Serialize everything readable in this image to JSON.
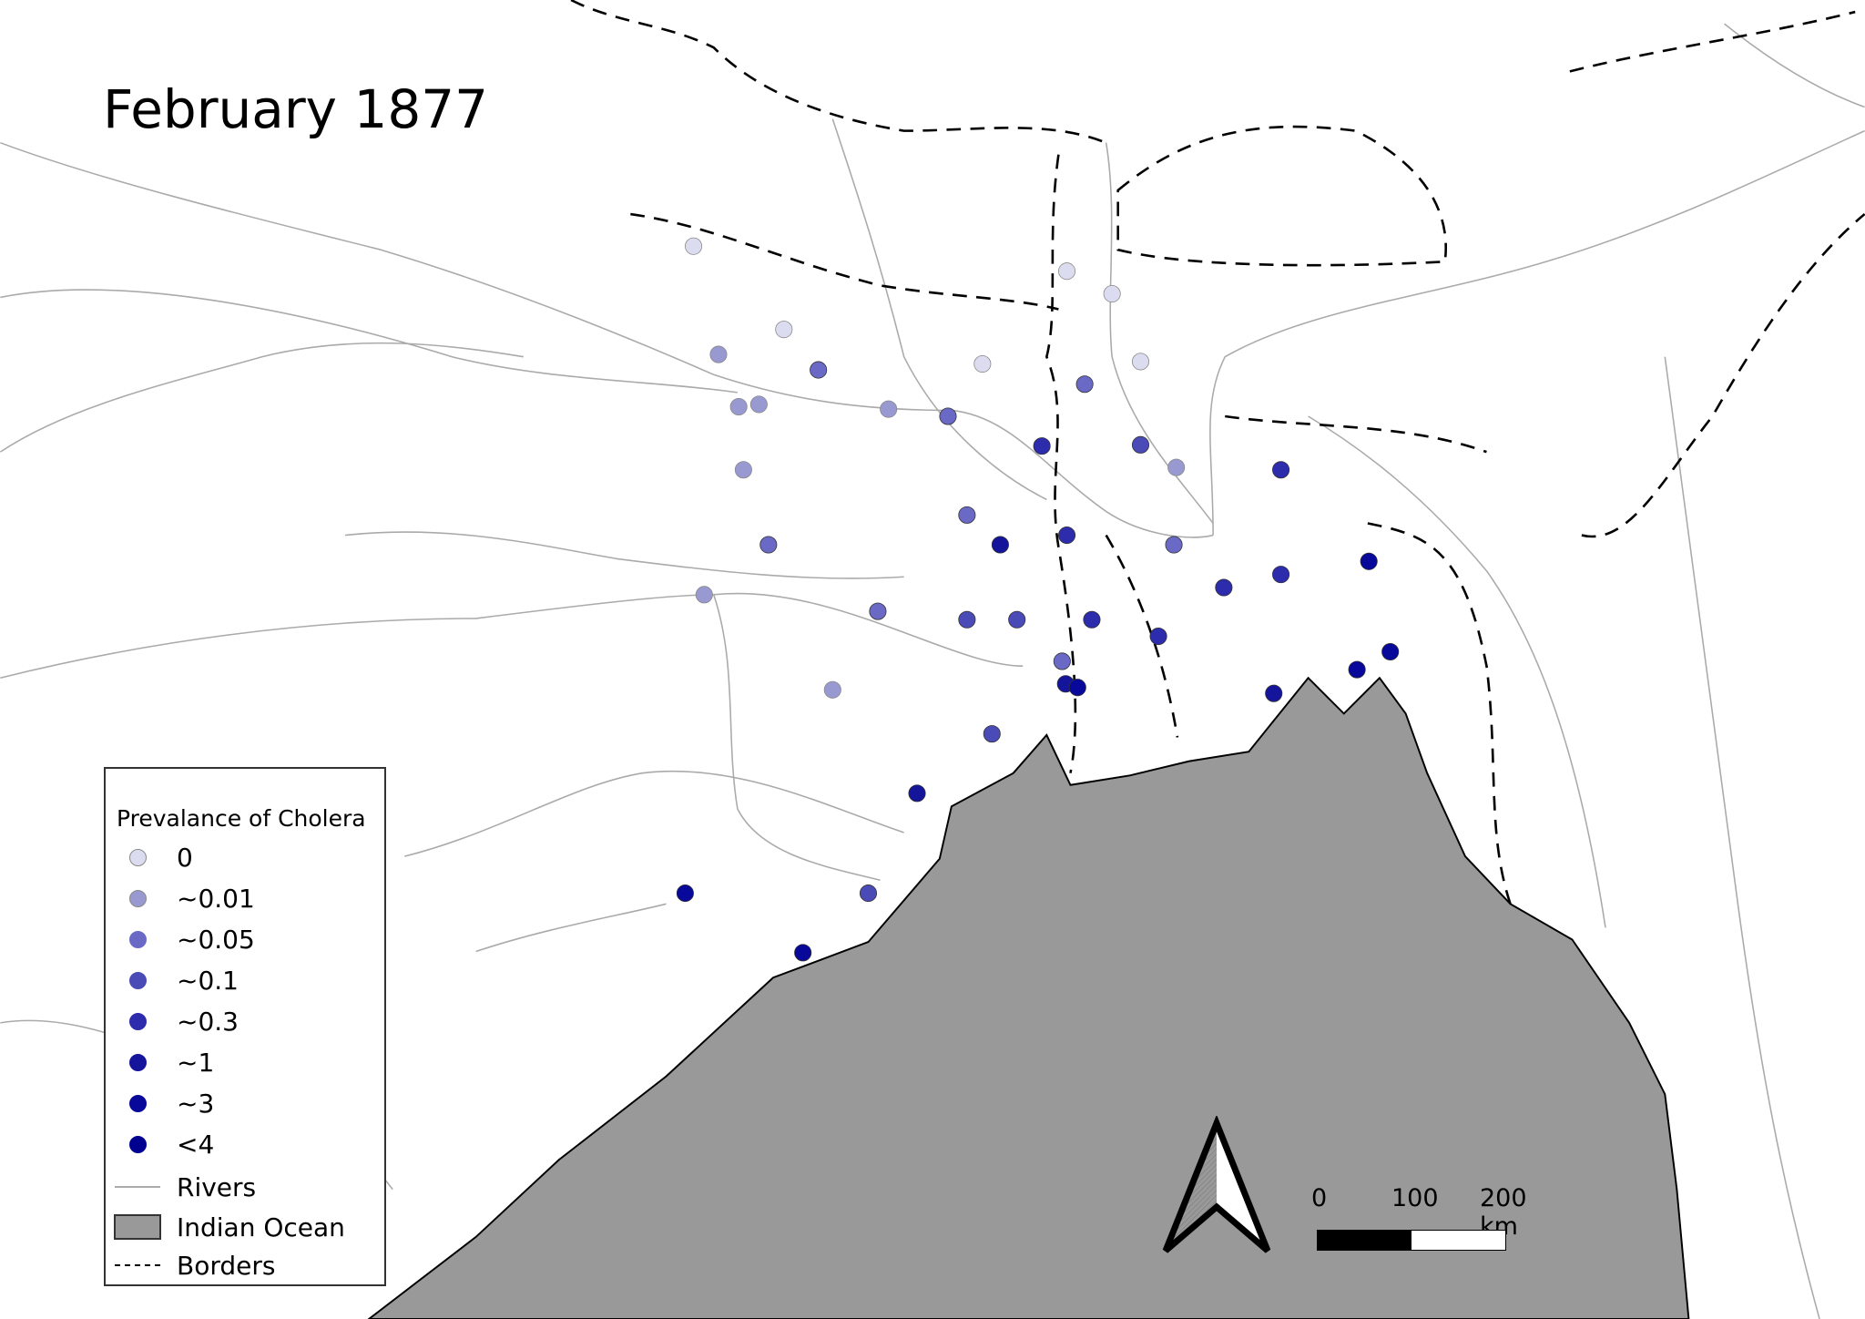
{
  "title": "February 1877",
  "legend": {
    "title": "Prevalance of Cholera",
    "classes": [
      {
        "label": "0",
        "color": "#dcdcf0"
      },
      {
        "label": "~0.01",
        "color": "#9999d2"
      },
      {
        "label": "~0.05",
        "color": "#6a6ac6"
      },
      {
        "label": "~0.1",
        "color": "#4b4bb8"
      },
      {
        "label": "~0.3",
        "color": "#2c2cac"
      },
      {
        "label": "~1",
        "color": "#15159c"
      },
      {
        "label": "~3",
        "color": "#08089a"
      },
      {
        "label": "<4",
        "color": "#000090"
      }
    ],
    "rivers_label": "Rivers",
    "ocean_label": "Indian Ocean",
    "borders_label": "Borders"
  },
  "colors": {
    "ocean": "#999999",
    "rivers": "#a8a8a8",
    "borders": "#000000"
  },
  "scale_bar": {
    "labels": [
      "0",
      "100",
      "200 km"
    ]
  },
  "north_arrow": "north-arrow-icon"
}
